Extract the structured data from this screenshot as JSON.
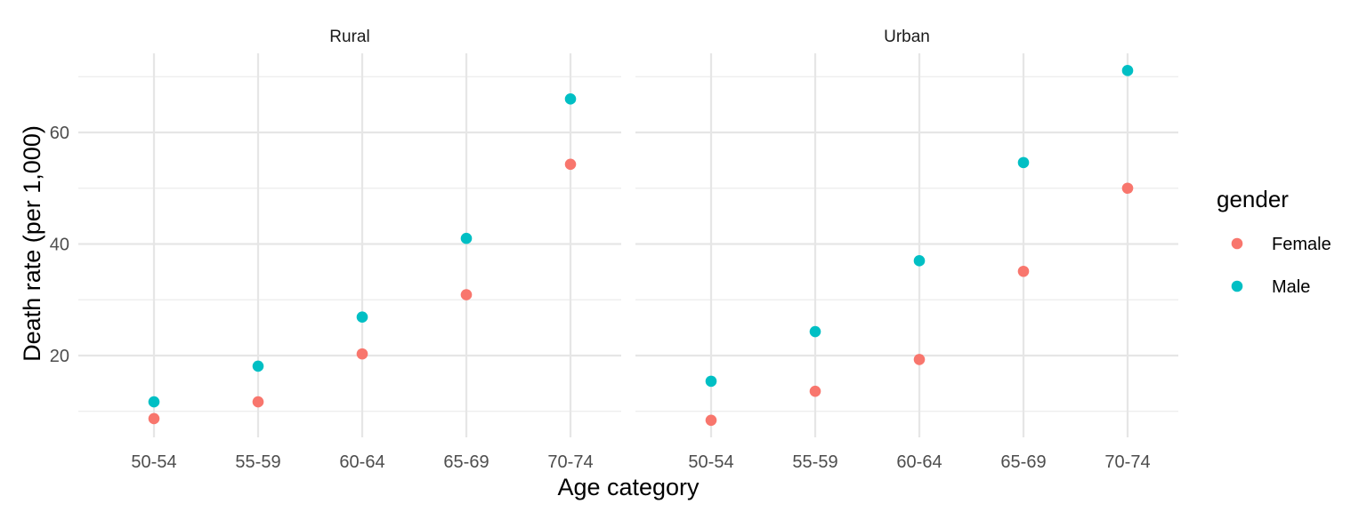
{
  "chart_data": {
    "type": "scatter",
    "xlabel": "Age category",
    "ylabel": "Death rate (per 1,000)",
    "categories": [
      "50-54",
      "55-59",
      "60-64",
      "65-69",
      "70-74"
    ],
    "ylim": [
      5,
      72
    ],
    "y_ticks": [
      20,
      40,
      60
    ],
    "grid": true,
    "legend": {
      "title": "gender",
      "placement": "right",
      "entries": [
        {
          "name": "Female",
          "color": "#F8766D"
        },
        {
          "name": "Male",
          "color": "#00BFC4"
        }
      ]
    },
    "facets": [
      {
        "label": "Rural",
        "series": [
          {
            "name": "Female",
            "values": [
              8.7,
              11.7,
              20.3,
              30.9,
              54.3
            ]
          },
          {
            "name": "Male",
            "values": [
              11.7,
              18.1,
              26.9,
              41.0,
              66.0
            ]
          }
        ]
      },
      {
        "label": "Urban",
        "series": [
          {
            "name": "Female",
            "values": [
              8.4,
              13.6,
              19.3,
              35.1,
              50.0
            ]
          },
          {
            "name": "Male",
            "values": [
              15.4,
              24.3,
              37.0,
              54.6,
              71.1
            ]
          }
        ]
      }
    ]
  }
}
